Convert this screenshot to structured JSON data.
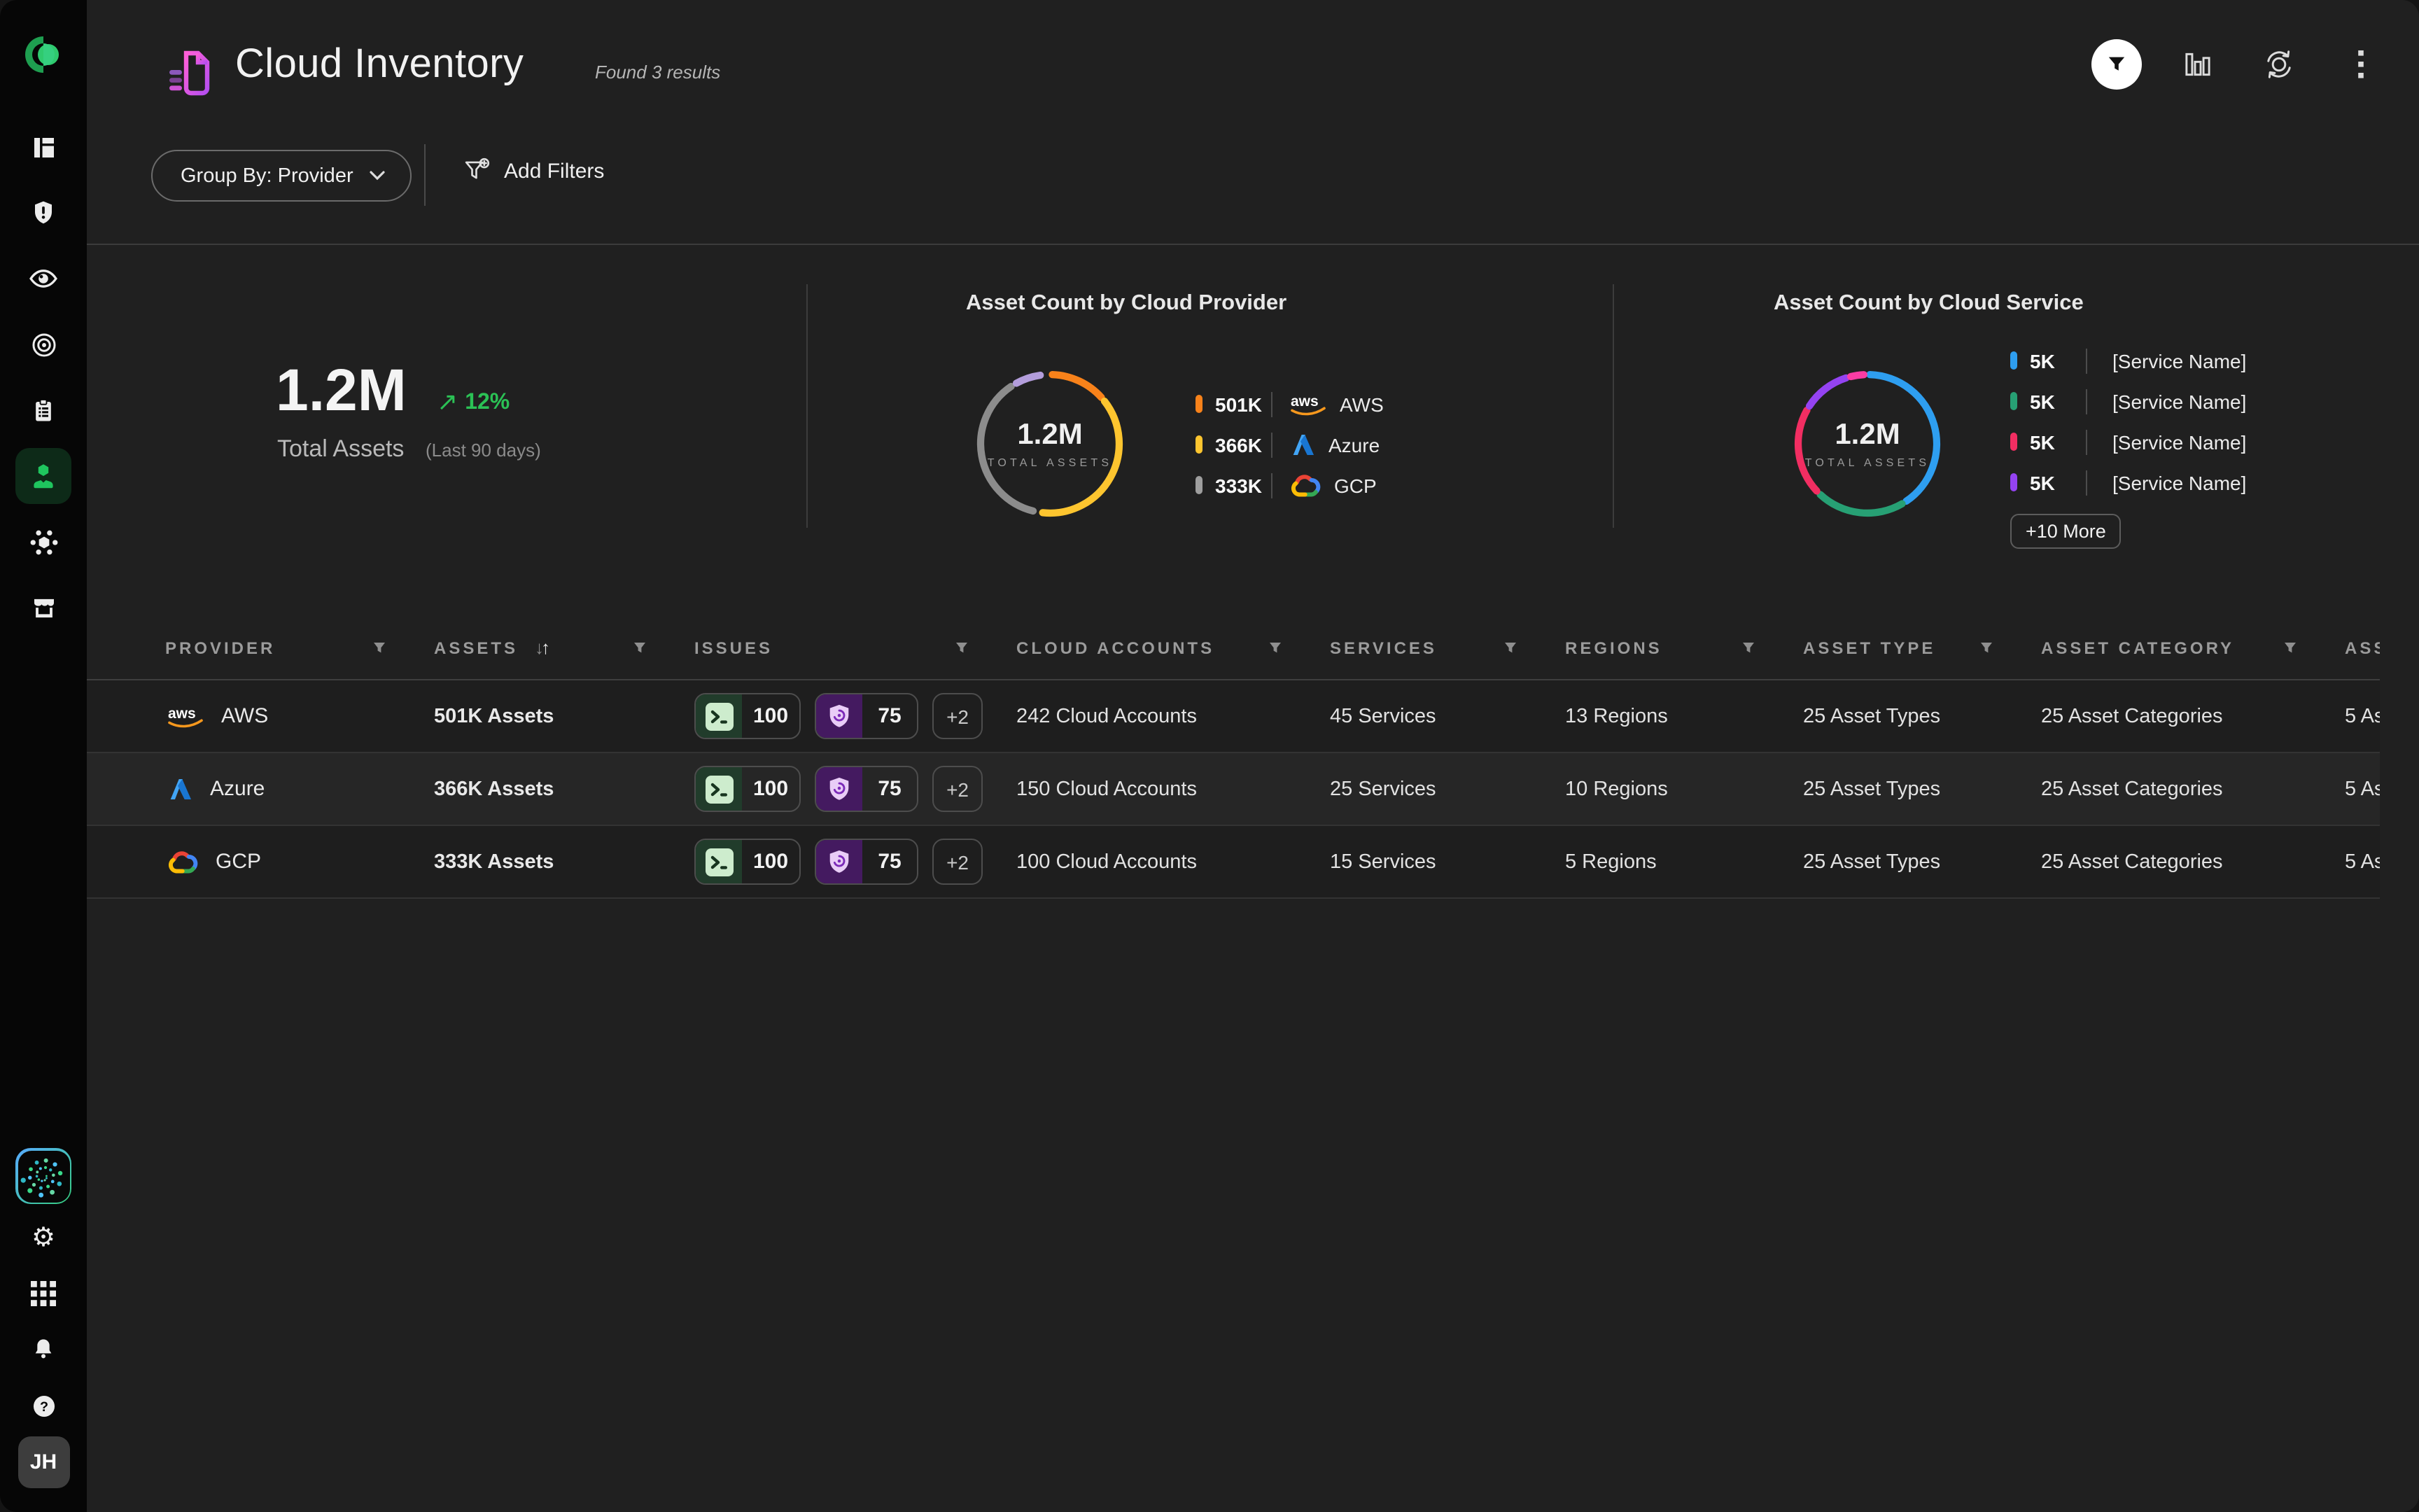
{
  "header": {
    "title": "Cloud Inventory",
    "results_count": "Found 3 results",
    "action_icons": [
      "filter",
      "bar-chart",
      "sync",
      "more"
    ]
  },
  "toolbar": {
    "group_by_label": "Group By: Provider",
    "add_filters_label": "Add Filters"
  },
  "summary": {
    "total_value": "1.2M",
    "trend_arrow": "↗",
    "trend_value": "12%",
    "trend_color": "#2bc155",
    "label": "Total Assets",
    "period": "(Last 90 days)"
  },
  "provider_chart": {
    "title": "Asset Count by Cloud Provider",
    "center_value": "1.2M",
    "center_label": "TOTAL ASSETS",
    "legend": [
      {
        "value": "501K",
        "label": "AWS",
        "color": "#f8821a"
      },
      {
        "value": "366K",
        "label": "Azure",
        "color": "#fdc52f"
      },
      {
        "value": "333K",
        "label": "GCP",
        "color": "#9e9e9e"
      }
    ],
    "arcs": [
      {
        "from": 2,
        "to": 48,
        "color": "#f8821a"
      },
      {
        "from": 52,
        "to": 186,
        "color": "#fdc52f"
      },
      {
        "from": 194,
        "to": 326,
        "color": "#8c8c8c"
      },
      {
        "from": 331,
        "to": 352,
        "color": "#b39ddb"
      }
    ]
  },
  "service_chart": {
    "title": "Asset Count by Cloud Service",
    "center_value": "1.2M",
    "center_label": "TOTAL ASSETS",
    "legend": [
      {
        "value": "5K",
        "label": "[Service Name]",
        "color": "#2e9ef0"
      },
      {
        "value": "5K",
        "label": "[Service Name]",
        "color": "#27a074"
      },
      {
        "value": "5K",
        "label": "[Service Name]",
        "color": "#f22e62"
      },
      {
        "value": "5K",
        "label": "[Service Name]",
        "color": "#9443f2"
      }
    ],
    "more_label": "+10 More",
    "arcs": [
      {
        "from": 2,
        "to": 146,
        "color": "#2e9ef0"
      },
      {
        "from": 150,
        "to": 223,
        "color": "#27a074"
      },
      {
        "from": 227,
        "to": 299,
        "color": "#f22e62"
      },
      {
        "from": 303,
        "to": 342,
        "color": "#9443f2"
      },
      {
        "from": 346,
        "to": 357,
        "color": "#fa3ca4"
      }
    ]
  },
  "chart_data": [
    {
      "type": "pie",
      "title": "Asset Count by Cloud Provider",
      "categories": [
        "AWS",
        "Azure",
        "GCP"
      ],
      "values": [
        501000,
        366000,
        333000
      ],
      "value_labels": [
        "501K",
        "366K",
        "333K"
      ],
      "center_text": "1.2M TOTAL ASSETS",
      "legend_position": "right"
    },
    {
      "type": "pie",
      "title": "Asset Count by Cloud Service",
      "categories": [
        "[Service Name]",
        "[Service Name]",
        "[Service Name]",
        "[Service Name]"
      ],
      "values": [
        5000,
        5000,
        5000,
        5000
      ],
      "value_labels": [
        "5K",
        "5K",
        "5K",
        "5K"
      ],
      "more": "+10 More",
      "center_text": "1.2M TOTAL ASSETS",
      "legend_position": "right"
    }
  ],
  "table": {
    "columns": [
      "PROVIDER",
      "ASSETS",
      "ISSUES",
      "CLOUD ACCOUNTS",
      "SERVICES",
      "REGIONS",
      "ASSET TYPE",
      "ASSET CATEGORY",
      "ASS"
    ],
    "sort_icons": "↓↑",
    "rows": [
      {
        "provider": "AWS",
        "assets": "501K Assets",
        "issue_1": "100",
        "issue_2": "75",
        "issue_more": "+2",
        "cloud_accounts": "242 Cloud Accounts",
        "services": "45 Services",
        "regions": "13 Regions",
        "asset_type": "25 Asset Types",
        "asset_category": "25 Asset Categories",
        "assets_truncated": "5 As"
      },
      {
        "provider": "Azure",
        "assets": "366K Assets",
        "issue_1": "100",
        "issue_2": "75",
        "issue_more": "+2",
        "cloud_accounts": "150 Cloud Accounts",
        "services": "25 Services",
        "regions": "10 Regions",
        "asset_type": "25 Asset Types",
        "asset_category": "25 Asset Categories",
        "assets_truncated": "5 As"
      },
      {
        "provider": "GCP",
        "assets": "333K Assets",
        "issue_1": "100",
        "issue_2": "75",
        "issue_more": "+2",
        "cloud_accounts": "100 Cloud Accounts",
        "services": "15 Services",
        "regions": "5 Regions",
        "asset_type": "25 Asset Types",
        "asset_category": "25 Asset Categories",
        "assets_truncated": "5 As"
      }
    ]
  },
  "sidebar": {
    "avatar_initials": "JH",
    "items": [
      "logo",
      "dashboard",
      "shield-alert",
      "eye",
      "target",
      "clipboard",
      "inventory",
      "molecule",
      "storefront"
    ],
    "bottom_items": [
      "ai-assistant",
      "settings",
      "apps-grid",
      "notifications",
      "help",
      "avatar"
    ]
  }
}
